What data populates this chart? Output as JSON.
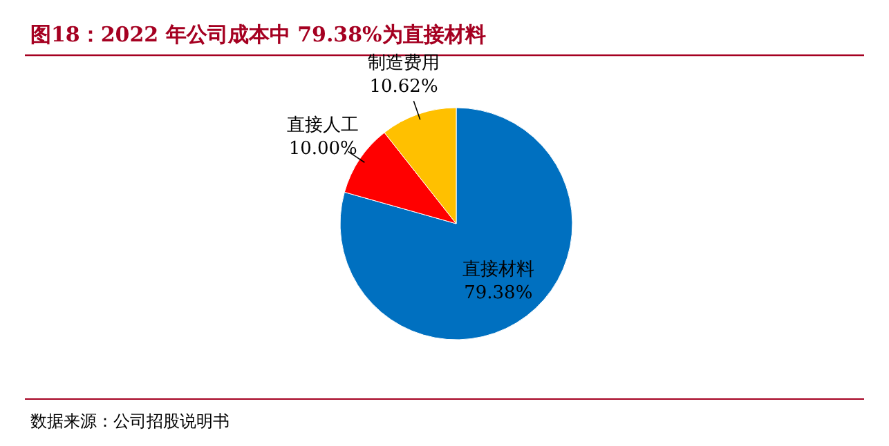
{
  "chart_data": {
    "type": "pie",
    "title": "图18：2022 年公司成本中 79.38%为直接材料",
    "categories": [
      "直接材料",
      "直接人工",
      "制造费用"
    ],
    "values": [
      79.38,
      10.0,
      10.62
    ],
    "colors": [
      "#0070c0",
      "#ff0000",
      "#ffc000"
    ],
    "value_labels": [
      "79.38%",
      "10.00%",
      "10.62%"
    ],
    "annotations": [
      "数据来源：公司招股说明书"
    ]
  }
}
